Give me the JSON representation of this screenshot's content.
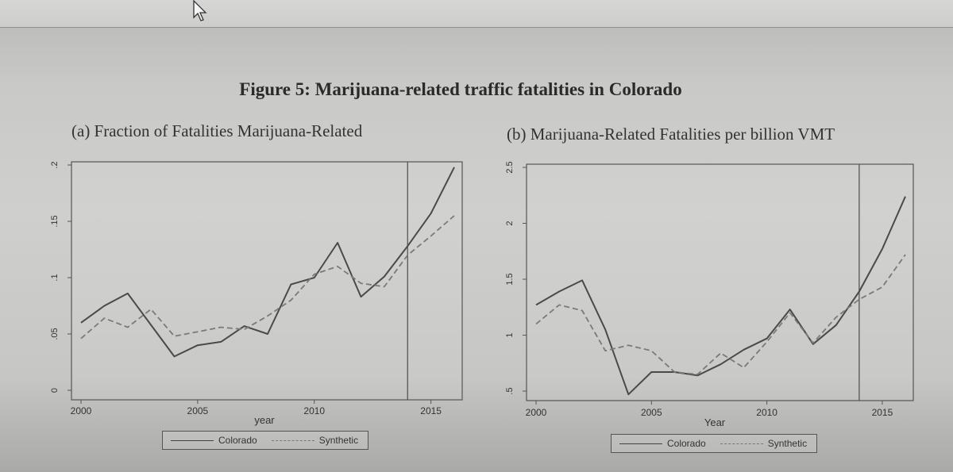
{
  "figure_title": "Figure 5: Marijuana-related traffic fatalities in Colorado",
  "chart_data": [
    {
      "type": "line",
      "title": "(a) Fraction of Fatalities Marijuana-Related",
      "xlabel": "year",
      "ylabel": "",
      "xlim": [
        2000,
        2016
      ],
      "ylim": [
        0,
        0.2
      ],
      "xticks": [
        2000,
        2005,
        2010,
        2015
      ],
      "yticks": [
        0,
        0.05,
        0.1,
        0.15,
        0.2
      ],
      "ytick_labels": [
        "0",
        ".05",
        ".1",
        ".15",
        ".2"
      ],
      "treatment_line_x": 2014,
      "legend_position": "bottom",
      "series": [
        {
          "name": "Colorado",
          "style": "solid",
          "color": "#4a4a4a",
          "x": [
            2000,
            2001,
            2002,
            2003,
            2004,
            2005,
            2006,
            2007,
            2008,
            2009,
            2010,
            2011,
            2012,
            2013,
            2014,
            2015,
            2016
          ],
          "values": [
            0.06,
            0.075,
            0.086,
            0.058,
            0.03,
            0.04,
            0.043,
            0.057,
            0.05,
            0.094,
            0.1,
            0.131,
            0.083,
            0.101,
            0.128,
            0.157,
            0.198
          ]
        },
        {
          "name": "Synthetic",
          "style": "dashed",
          "color": "#7a7a7a",
          "x": [
            2000,
            2001,
            2002,
            2003,
            2004,
            2005,
            2006,
            2007,
            2008,
            2009,
            2010,
            2011,
            2012,
            2013,
            2014,
            2015,
            2016
          ],
          "values": [
            0.046,
            0.064,
            0.056,
            0.072,
            0.048,
            0.052,
            0.056,
            0.054,
            0.066,
            0.08,
            0.103,
            0.11,
            0.095,
            0.092,
            0.12,
            0.137,
            0.155
          ]
        }
      ]
    },
    {
      "type": "line",
      "title": "(b) Marijuana-Related Fatalities per billion VMT",
      "xlabel": "Year",
      "ylabel": "",
      "xlim": [
        2000,
        2016
      ],
      "ylim": [
        0.5,
        2.5
      ],
      "xticks": [
        2000,
        2005,
        2010,
        2015
      ],
      "yticks": [
        0.5,
        1,
        1.5,
        2,
        2.5
      ],
      "ytick_labels": [
        ".5",
        "1",
        "1.5",
        "2",
        "2.5"
      ],
      "treatment_line_x": 2014,
      "legend_position": "bottom",
      "series": [
        {
          "name": "Colorado",
          "style": "solid",
          "color": "#4a4a4a",
          "x": [
            2000,
            2001,
            2002,
            2003,
            2004,
            2005,
            2006,
            2007,
            2008,
            2009,
            2010,
            2011,
            2012,
            2013,
            2014,
            2015,
            2016
          ],
          "values": [
            1.27,
            1.39,
            1.49,
            1.05,
            0.47,
            0.67,
            0.67,
            0.64,
            0.74,
            0.87,
            0.97,
            1.23,
            0.92,
            1.09,
            1.39,
            1.77,
            2.24
          ]
        },
        {
          "name": "Synthetic",
          "style": "dashed",
          "color": "#7a7a7a",
          "x": [
            2000,
            2001,
            2002,
            2003,
            2004,
            2005,
            2006,
            2007,
            2008,
            2009,
            2010,
            2011,
            2012,
            2013,
            2014,
            2015,
            2016
          ],
          "values": [
            1.1,
            1.27,
            1.22,
            0.86,
            0.91,
            0.86,
            0.67,
            0.65,
            0.84,
            0.71,
            0.94,
            1.2,
            0.93,
            1.16,
            1.32,
            1.43,
            1.72
          ]
        }
      ]
    }
  ]
}
